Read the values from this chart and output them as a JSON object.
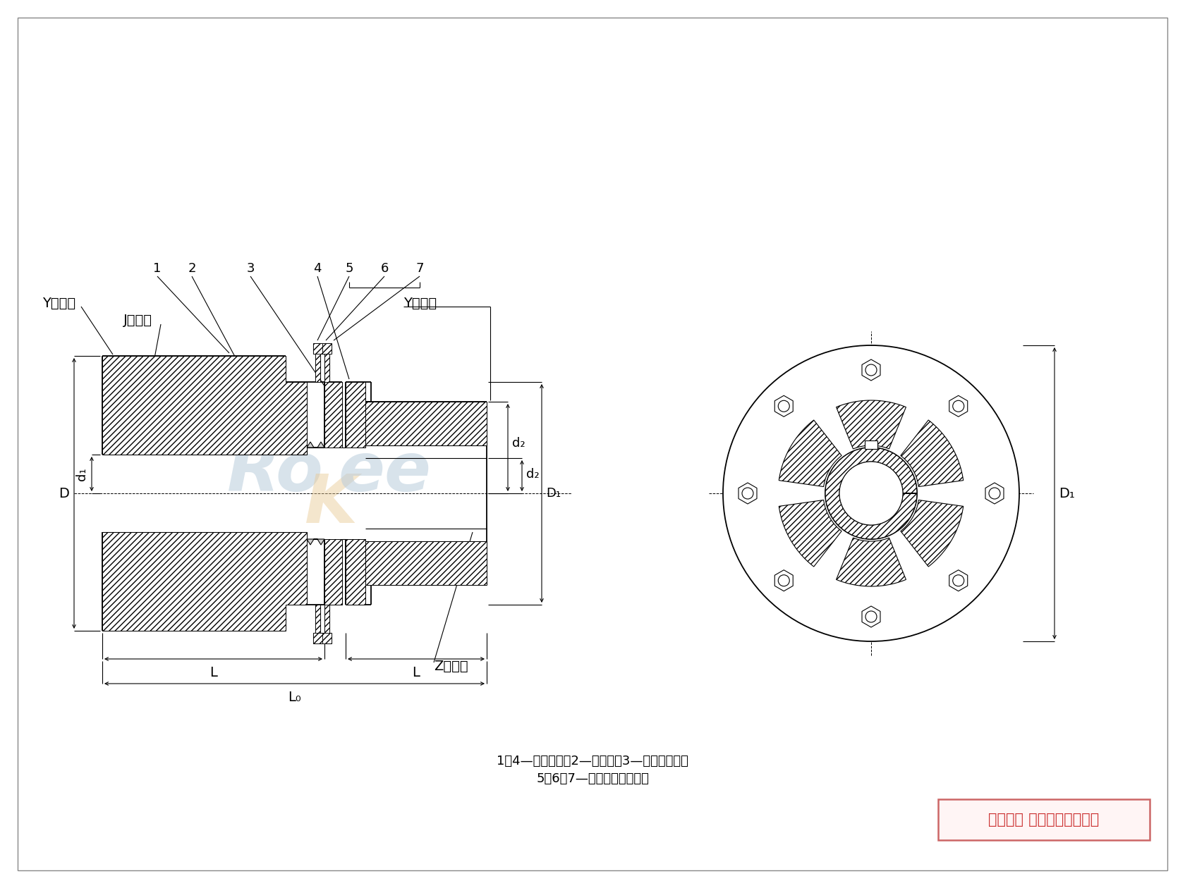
{
  "bg_color": "#ffffff",
  "line_color": "#000000",
  "legend_text1": "1、4—半联轴器；2—弹性件；3—法兰连接件；",
  "legend_text2": "5、6、7—螺栓、螺母、垫片",
  "copyright_text": "版权所有 侵权必被严厉追究",
  "label_Y_type_left": "Y型轴孔",
  "label_J_type": "J型轴孔",
  "label_Y_type_right": "Y型轴孔",
  "label_Z_type": "Z型轴孔",
  "label_D": "D",
  "label_d1": "d₁",
  "label_d2": "d₂",
  "label_D1": "D₁",
  "label_dz": "d₂",
  "label_L": "L",
  "label_L2": "L",
  "label_L0": "L₀",
  "font_size_label": 14,
  "font_size_num": 13,
  "font_size_legend": 13,
  "font_size_copyright": 15,
  "font_size_dim": 14
}
